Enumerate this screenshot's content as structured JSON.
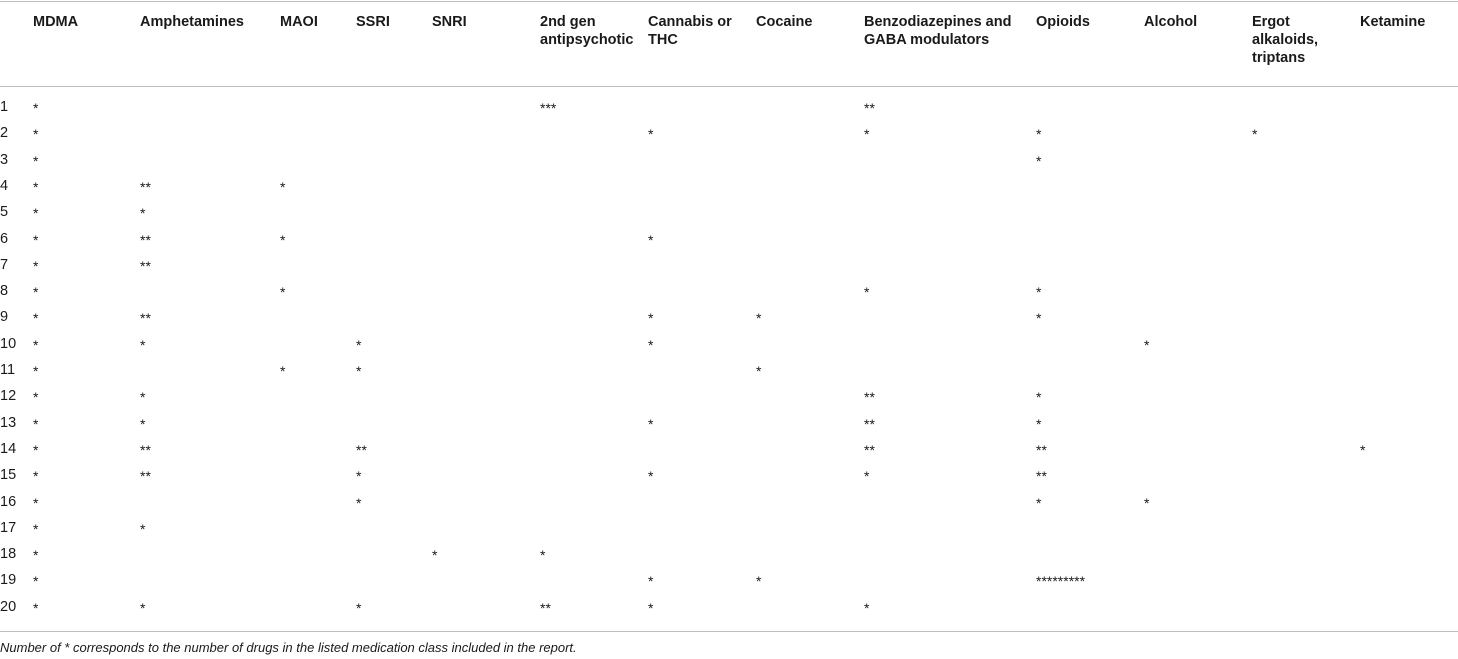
{
  "columns": [
    "MDMA",
    "Amphetamines",
    "MAOI",
    "SSRI",
    "SNRI",
    "2nd gen antipsychotic",
    "Cannabis or THC",
    "Cocaine",
    "Benzodiazepines and GABA modulators",
    "Opioids",
    "Alcohol",
    "Ergot alkaloids, triptans",
    "Ketamine"
  ],
  "rows": [
    {
      "num": "1",
      "cells": [
        "*",
        "",
        "",
        "",
        "",
        "***",
        "",
        "",
        "**",
        "",
        "",
        "",
        ""
      ]
    },
    {
      "num": "2",
      "cells": [
        "*",
        "",
        "",
        "",
        "",
        "",
        "*",
        "",
        "*",
        "*",
        "",
        "*",
        ""
      ]
    },
    {
      "num": "3",
      "cells": [
        "*",
        "",
        "",
        "",
        "",
        "",
        "",
        "",
        "",
        "*",
        "",
        "",
        ""
      ]
    },
    {
      "num": "4",
      "cells": [
        "*",
        "**",
        "*",
        "",
        "",
        "",
        "",
        "",
        "",
        "",
        "",
        "",
        ""
      ]
    },
    {
      "num": "5",
      "cells": [
        "*",
        "*",
        "",
        "",
        "",
        "",
        "",
        "",
        "",
        "",
        "",
        "",
        ""
      ]
    },
    {
      "num": "6",
      "cells": [
        "*",
        "**",
        "*",
        "",
        "",
        "",
        "*",
        "",
        "",
        "",
        "",
        "",
        ""
      ]
    },
    {
      "num": "7",
      "cells": [
        "*",
        "**",
        "",
        "",
        "",
        "",
        "",
        "",
        "",
        "",
        "",
        "",
        ""
      ]
    },
    {
      "num": "8",
      "cells": [
        "*",
        "",
        "*",
        "",
        "",
        "",
        "",
        "",
        "*",
        "*",
        "",
        "",
        ""
      ]
    },
    {
      "num": "9",
      "cells": [
        "*",
        "**",
        "",
        "",
        "",
        "",
        "*",
        "*",
        "",
        "*",
        "",
        "",
        ""
      ]
    },
    {
      "num": "10",
      "cells": [
        "*",
        "*",
        "",
        "*",
        "",
        "",
        "*",
        "",
        "",
        "",
        "*",
        "",
        ""
      ]
    },
    {
      "num": "11",
      "cells": [
        "*",
        "",
        "*",
        "*",
        "",
        "",
        "",
        "*",
        "",
        "",
        "",
        "",
        ""
      ]
    },
    {
      "num": "12",
      "cells": [
        "*",
        "*",
        "",
        "",
        "",
        "",
        "",
        "",
        "**",
        "*",
        "",
        "",
        ""
      ]
    },
    {
      "num": "13",
      "cells": [
        "*",
        "*",
        "",
        "",
        "",
        "",
        "*",
        "",
        "**",
        "*",
        "",
        "",
        ""
      ]
    },
    {
      "num": "14",
      "cells": [
        "*",
        "**",
        "",
        "**",
        "",
        "",
        "",
        "",
        "**",
        "**",
        "",
        "",
        "*"
      ]
    },
    {
      "num": "15",
      "cells": [
        "*",
        "**",
        "",
        "*",
        "",
        "",
        "*",
        "",
        "*",
        "**",
        "",
        "",
        ""
      ]
    },
    {
      "num": "16",
      "cells": [
        "*",
        "",
        "",
        "*",
        "",
        "",
        "",
        "",
        "",
        "*",
        "*",
        "",
        ""
      ]
    },
    {
      "num": "17",
      "cells": [
        "*",
        "*",
        "",
        "",
        "",
        "",
        "",
        "",
        "",
        "",
        "",
        "",
        ""
      ]
    },
    {
      "num": "18",
      "cells": [
        "*",
        "",
        "",
        "",
        "*",
        "*",
        "",
        "",
        "",
        "",
        "",
        "",
        ""
      ]
    },
    {
      "num": "19",
      "cells": [
        "*",
        "",
        "",
        "",
        "",
        "",
        "*",
        "*",
        "",
        "*********",
        "",
        "",
        ""
      ]
    },
    {
      "num": "20",
      "cells": [
        "*",
        "*",
        "",
        "*",
        "",
        "**",
        "*",
        "",
        "*",
        "",
        "",
        "",
        ""
      ]
    }
  ],
  "footnote": "Number of * corresponds to the number of drugs in the listed medication class included in the report."
}
